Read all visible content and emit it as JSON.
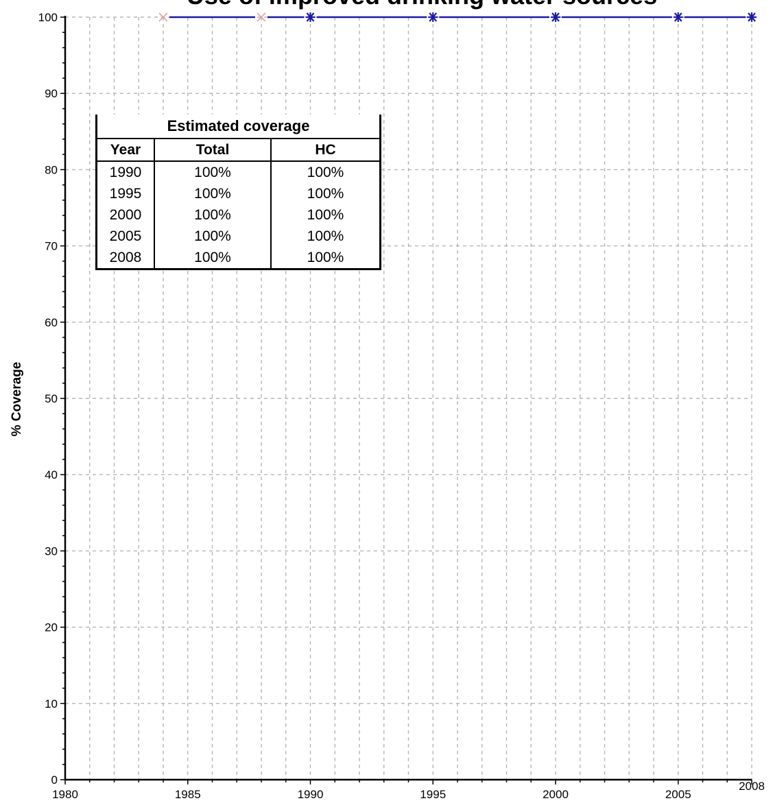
{
  "chart_data": {
    "type": "line",
    "title": "Use of improved drinking water sources",
    "ylabel": "% Coverage",
    "xlabel": "",
    "xlim": [
      1980,
      2008
    ],
    "ylim": [
      0,
      100
    ],
    "x_ticks": [
      "1980",
      "1985",
      "1990",
      "1995",
      "2000",
      "2005",
      "2008"
    ],
    "y_ticks": [
      "0",
      "10",
      "20",
      "30",
      "40",
      "50",
      "60",
      "70",
      "80",
      "90",
      "100"
    ],
    "grid": true,
    "series": [
      {
        "marker": "x",
        "color": "#e8a0a0",
        "x": [
          1984,
          1988
        ],
        "y": [
          100,
          100
        ]
      },
      {
        "marker": "asterisk",
        "color": "#1a1aa8",
        "x": [
          1984,
          1988,
          1990,
          1995,
          2000,
          2005,
          2008
        ],
        "y": [
          100,
          100,
          100,
          100,
          100,
          100,
          100
        ]
      }
    ],
    "table": {
      "caption": "Estimated coverage",
      "columns": [
        "Year",
        "Total",
        "HC"
      ],
      "rows": [
        [
          "1990",
          "100%",
          "100%"
        ],
        [
          "1995",
          "100%",
          "100%"
        ],
        [
          "2000",
          "100%",
          "100%"
        ],
        [
          "2005",
          "100%",
          "100%"
        ],
        [
          "2008",
          "100%",
          "100%"
        ]
      ]
    }
  }
}
